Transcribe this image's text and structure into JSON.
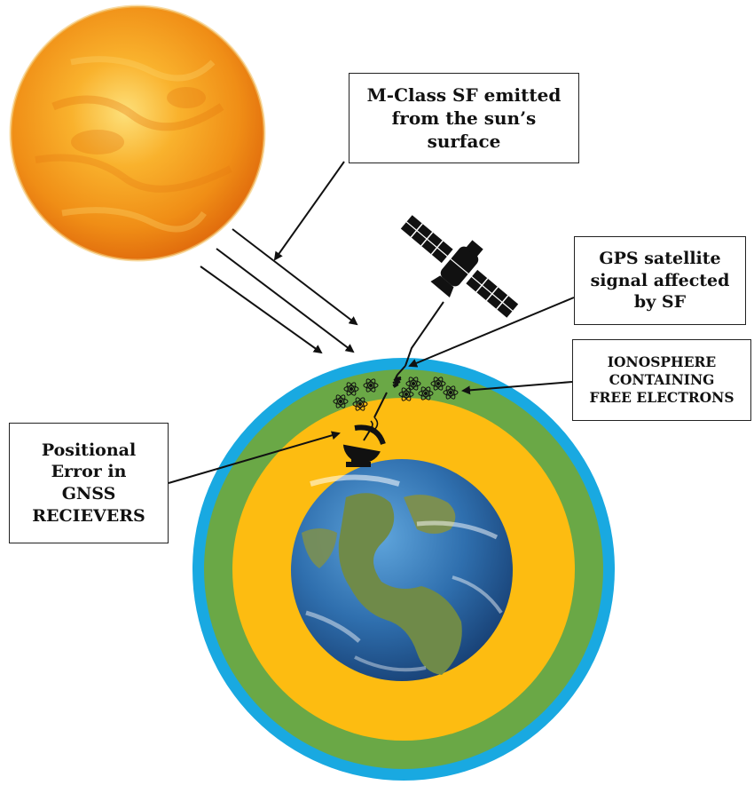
{
  "labels": {
    "flare": {
      "lines": [
        "M-Class SF  emitted",
        "from the sun’s",
        "surface"
      ]
    },
    "gps": {
      "lines": [
        "GPS satellite",
        "signal affected",
        "by SF"
      ]
    },
    "iono": {
      "lines": [
        "IONOSPHERE",
        "CONTAINING",
        "FREE ELECTRONS"
      ]
    },
    "receiver": {
      "lines": [
        "Positional",
        "Error in",
        "GNSS",
        "RECIEVERS"
      ]
    }
  },
  "colors": {
    "outer_layer": "#19a9e1",
    "ionosphere_layer": "#6aa846",
    "inner_atmosphere": "#fdbc11",
    "ocean": "#2f6fae",
    "land": "#6f8a49",
    "sun_core": "#f6a21d",
    "sun_edge": "#e76a0c",
    "ink": "#111111"
  },
  "icons": [
    "sun-icon",
    "earth-icon",
    "gps-satellite-icon",
    "satellite-dish-icon",
    "atom-icon",
    "signal-wave-icon"
  ]
}
